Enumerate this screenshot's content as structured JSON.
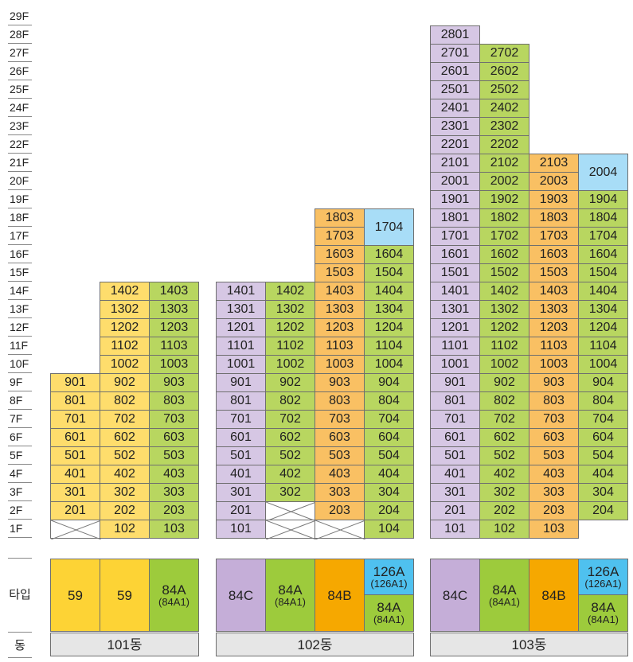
{
  "colors": {
    "yellow": "#fedd6c",
    "green": "#b8d660",
    "orange": "#f9c063",
    "purple": "#d6c7e4",
    "blue": "#a8ddf7",
    "type_yellow": "#fdd335",
    "type_green": "#9dcb3c",
    "type_orange": "#f6a800",
    "type_purple": "#c5aed8",
    "type_blue": "#4fc1ef"
  },
  "floors": [
    "29F",
    "28F",
    "27F",
    "26F",
    "25F",
    "24F",
    "23F",
    "22F",
    "21F",
    "20F",
    "19F",
    "18F",
    "17F",
    "16F",
    "15F",
    "14F",
    "13F",
    "12F",
    "11F",
    "10F",
    "9F",
    "8F",
    "7F",
    "6F",
    "5F",
    "4F",
    "3F",
    "2F",
    "1F"
  ],
  "labels": {
    "type": "타입",
    "building": "동"
  },
  "buildings": [
    {
      "name": "101동",
      "columns": [
        {
          "color": "yellow",
          "units": [
            "901",
            "801",
            "701",
            "601",
            "501",
            "401",
            "301",
            "201"
          ],
          "empty_floor1": true,
          "type": {
            "color": "type_yellow",
            "main": "59",
            "sub": ""
          }
        },
        {
          "color": "yellow",
          "units": [
            "1402",
            "1302",
            "1202",
            "1102",
            "1002",
            "902",
            "802",
            "702",
            "602",
            "502",
            "402",
            "302",
            "202",
            "102"
          ],
          "type": {
            "color": "type_yellow",
            "main": "59",
            "sub": ""
          }
        },
        {
          "color": "green",
          "units": [
            "1403",
            "1303",
            "1203",
            "1103",
            "1003",
            "903",
            "803",
            "703",
            "603",
            "503",
            "403",
            "303",
            "203",
            "103"
          ],
          "type": {
            "color": "type_green",
            "main": "84A",
            "sub": "(84A1)"
          }
        }
      ]
    },
    {
      "name": "102동",
      "columns": [
        {
          "color": "purple",
          "units": [
            "1401",
            "1301",
            "1201",
            "1101",
            "1001",
            "901",
            "801",
            "701",
            "601",
            "501",
            "401",
            "301",
            "201",
            "101"
          ],
          "type": {
            "color": "type_purple",
            "main": "84C",
            "sub": ""
          }
        },
        {
          "color": "green",
          "units": [
            "1402",
            "1302",
            "1202",
            "1102",
            "1002",
            "902",
            "802",
            "702",
            "602",
            "502",
            "402",
            "302"
          ],
          "empty_floors": [
            "2F",
            "1F"
          ],
          "type": {
            "color": "type_green",
            "main": "84A",
            "sub": "(84A1)"
          }
        },
        {
          "color": "orange",
          "units": [
            "1803",
            "1703",
            "1603",
            "1503",
            "1403",
            "1303",
            "1203",
            "1103",
            "1003",
            "903",
            "803",
            "703",
            "603",
            "503",
            "403",
            "303",
            "203"
          ],
          "empty_floor1": true,
          "type": {
            "color": "type_orange",
            "main": "84B",
            "sub": ""
          }
        },
        {
          "color": "green",
          "top_unit": {
            "label": "1704",
            "color": "blue"
          },
          "units": [
            "1604",
            "1504",
            "1404",
            "1304",
            "1204",
            "1104",
            "1004",
            "904",
            "804",
            "704",
            "604",
            "504",
            "404",
            "304",
            "204",
            "104"
          ],
          "type_split": [
            {
              "color": "type_blue",
              "main": "126A",
              "sub": "(126A1)"
            },
            {
              "color": "type_green",
              "main": "84A",
              "sub": "(84A1)"
            }
          ]
        }
      ]
    },
    {
      "name": "103동",
      "columns": [
        {
          "color": "purple",
          "units": [
            "2801",
            "2701",
            "2601",
            "2501",
            "2401",
            "2301",
            "2201",
            "2101",
            "2001",
            "1901",
            "1801",
            "1701",
            "1601",
            "1501",
            "1401",
            "1301",
            "1201",
            "1101",
            "1001",
            "901",
            "801",
            "701",
            "601",
            "501",
            "401",
            "301",
            "201",
            "101"
          ],
          "type": {
            "color": "type_purple",
            "main": "84C",
            "sub": ""
          }
        },
        {
          "color": "green",
          "units": [
            "2702",
            "2602",
            "2502",
            "2402",
            "2302",
            "2202",
            "2102",
            "2002",
            "1902",
            "1802",
            "1702",
            "1602",
            "1502",
            "1402",
            "1302",
            "1202",
            "1102",
            "1002",
            "902",
            "802",
            "702",
            "602",
            "502",
            "402",
            "302",
            "202",
            "102"
          ],
          "type": {
            "color": "type_green",
            "main": "84A",
            "sub": "(84A1)"
          }
        },
        {
          "color": "orange",
          "units": [
            "2103",
            "2003",
            "1903",
            "1803",
            "1703",
            "1603",
            "1503",
            "1403",
            "1303",
            "1203",
            "1103",
            "1003",
            "903",
            "803",
            "703",
            "603",
            "503",
            "403",
            "303",
            "203",
            "103"
          ],
          "type": {
            "color": "type_orange",
            "main": "84B",
            "sub": ""
          }
        },
        {
          "color": "green",
          "top_unit": {
            "label": "2004",
            "color": "blue"
          },
          "units": [
            "1904",
            "1804",
            "1704",
            "1604",
            "1504",
            "1404",
            "1304",
            "1204",
            "1104",
            "1004",
            "904",
            "804",
            "704",
            "604",
            "504",
            "404",
            "304",
            "204"
          ],
          "type_split": [
            {
              "color": "type_blue",
              "main": "126A",
              "sub": "(126A1)"
            },
            {
              "color": "type_green",
              "main": "84A",
              "sub": "(84A1)"
            }
          ]
        }
      ]
    }
  ]
}
